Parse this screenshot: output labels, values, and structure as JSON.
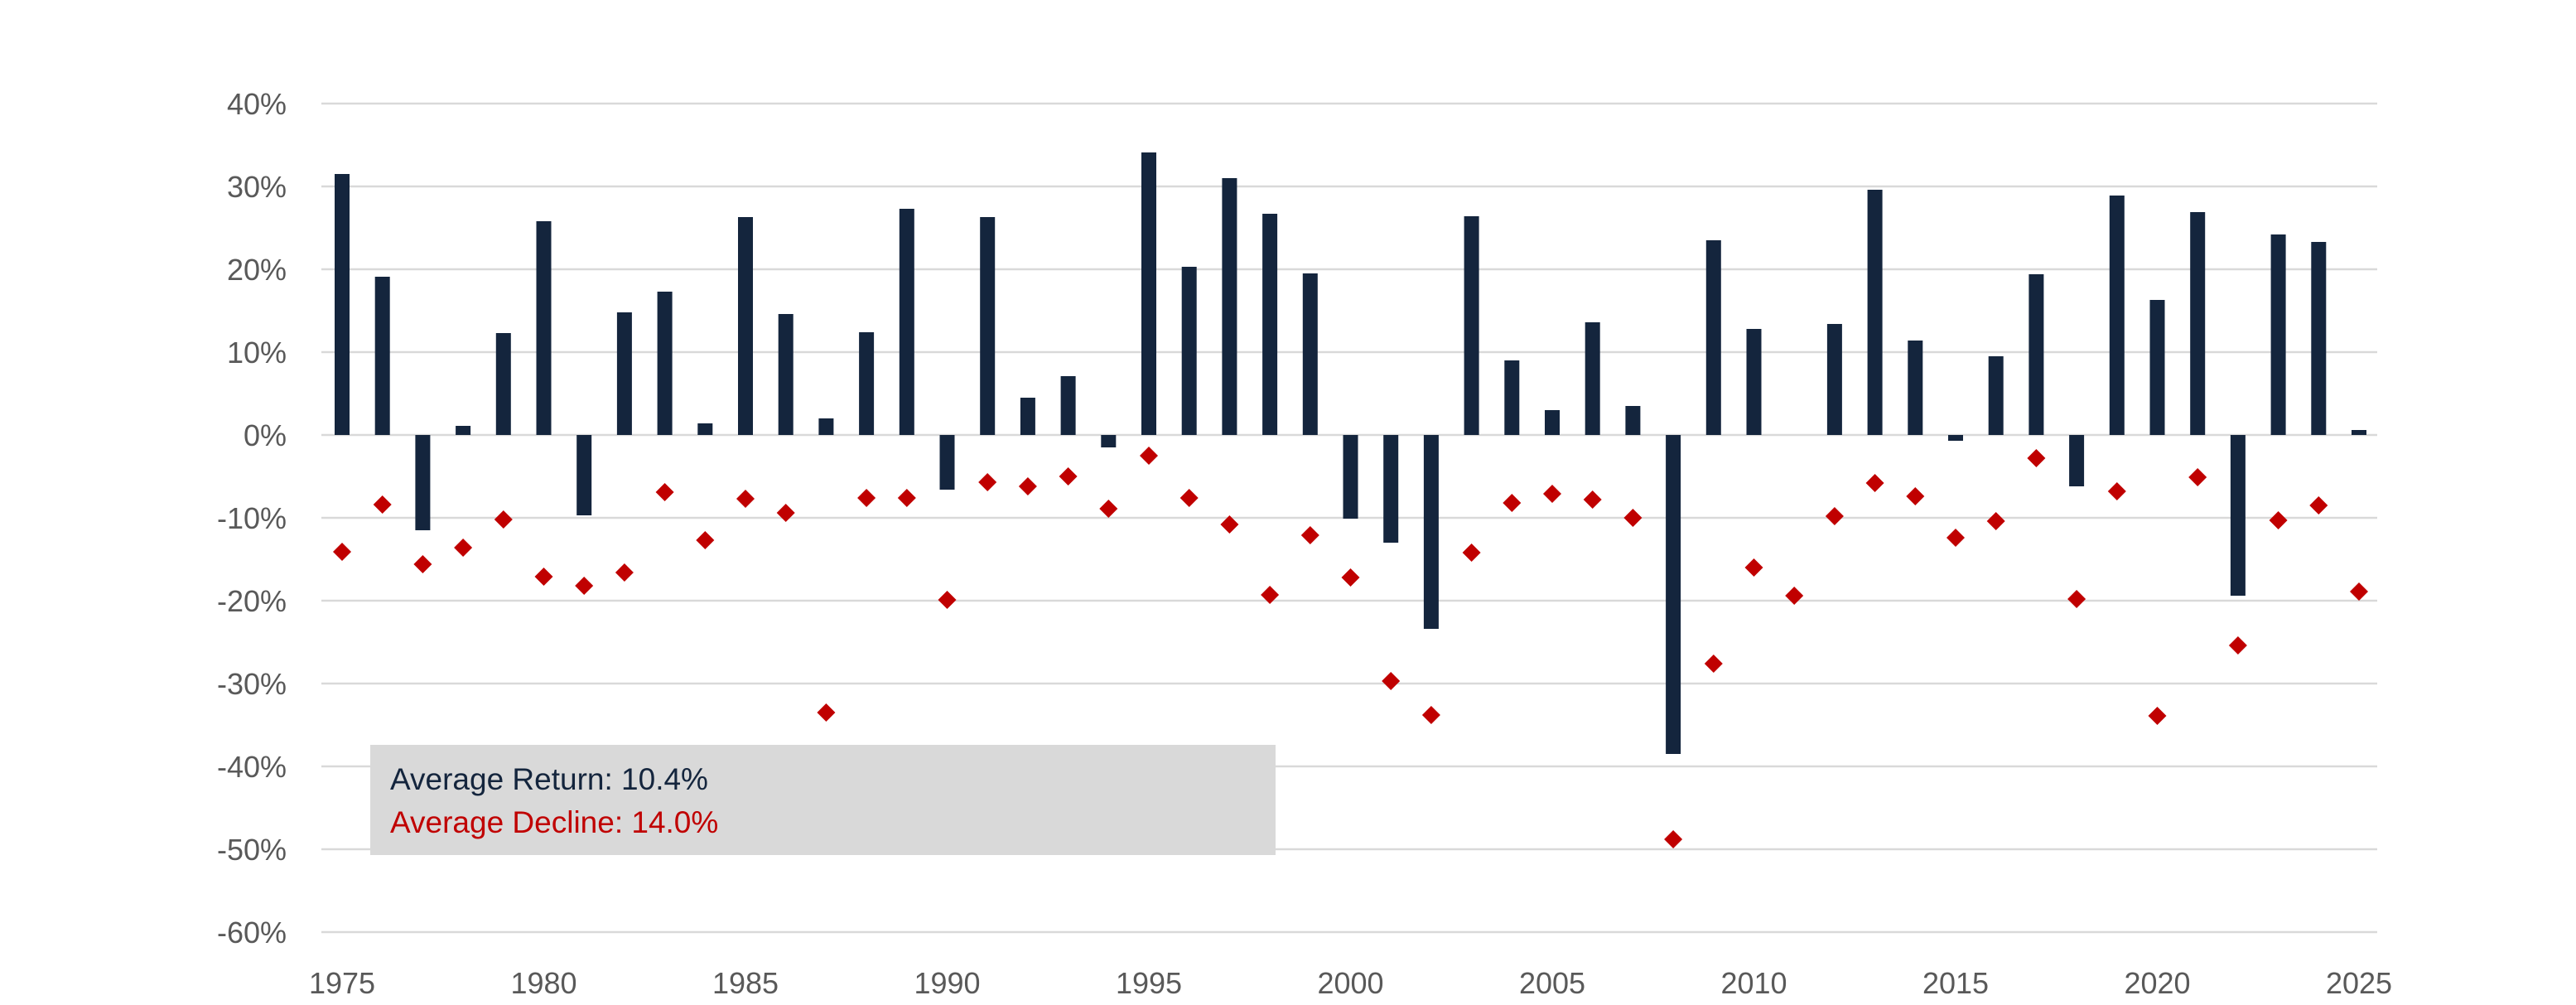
{
  "chart_data": {
    "type": "bar",
    "ylim": [
      -60,
      40
    ],
    "yticks": [
      40,
      30,
      20,
      10,
      0,
      -10,
      -20,
      -30,
      -40,
      -50,
      -60
    ],
    "ytick_labels": [
      "40%",
      "30%",
      "20%",
      "10%",
      "0%",
      "-10%",
      "-20%",
      "-30%",
      "-40%",
      "-50%",
      "-60%"
    ],
    "xlim": [
      1975,
      2025
    ],
    "xticks": [
      1975,
      1980,
      1985,
      1990,
      1995,
      2000,
      2005,
      2010,
      2015,
      2020,
      2025
    ],
    "xtick_labels": [
      "1975",
      "1980",
      "1985",
      "1990",
      "1995",
      "2000",
      "2005",
      "2010",
      "2015",
      "2020",
      "2025"
    ],
    "grid": true,
    "x": [
      1975,
      1976,
      1977,
      1978,
      1979,
      1980,
      1981,
      1982,
      1983,
      1984,
      1985,
      1986,
      1987,
      1988,
      1989,
      1990,
      1991,
      1992,
      1993,
      1994,
      1995,
      1996,
      1997,
      1998,
      1999,
      2000,
      2001,
      2002,
      2003,
      2004,
      2005,
      2006,
      2007,
      2008,
      2009,
      2010,
      2011,
      2012,
      2013,
      2014,
      2015,
      2016,
      2017,
      2018,
      2019,
      2020,
      2021,
      2022,
      2023,
      2024,
      2025
    ],
    "series": [
      {
        "kind": "bar",
        "color": "#14253d",
        "values": [
          31.5,
          19.1,
          -11.5,
          1.1,
          12.3,
          25.8,
          -9.7,
          14.8,
          17.3,
          1.4,
          26.3,
          14.6,
          2.0,
          12.4,
          27.3,
          -6.6,
          26.3,
          4.5,
          7.1,
          -1.5,
          34.1,
          20.3,
          31.0,
          26.7,
          19.5,
          -10.1,
          -13.0,
          -23.4,
          26.4,
          9.0,
          3.0,
          13.6,
          3.5,
          -38.5,
          23.5,
          12.8,
          0.0,
          13.4,
          29.6,
          11.4,
          -0.7,
          9.5,
          19.4,
          -6.2,
          28.9,
          16.3,
          26.9,
          -19.4,
          24.2,
          23.3,
          0.6
        ]
      },
      {
        "kind": "scatter",
        "color": "#c00000",
        "values": [
          -14.1,
          -8.4,
          -15.6,
          -13.6,
          -10.2,
          -17.1,
          -18.2,
          -16.6,
          -6.9,
          -12.7,
          -7.7,
          -9.4,
          -33.5,
          -7.6,
          -7.6,
          -19.9,
          -5.7,
          -6.2,
          -5.0,
          -8.9,
          -2.5,
          -7.6,
          -10.8,
          -19.3,
          -12.1,
          -17.2,
          -29.7,
          -33.8,
          -14.2,
          -8.2,
          -7.1,
          -7.8,
          -10.0,
          -48.8,
          -27.6,
          -16.0,
          -19.4,
          -9.8,
          -5.8,
          -7.4,
          -12.4,
          -10.4,
          -2.8,
          -19.8,
          -6.8,
          -33.9,
          -5.1,
          -25.4,
          -10.3,
          -8.5,
          -18.9
        ]
      }
    ]
  },
  "legend": {
    "avg_return_label": "Average Return: 10.4%",
    "avg_decline_label": "Average Decline: 14.0%",
    "return_color": "#14253d",
    "decline_color": "#c00000"
  }
}
